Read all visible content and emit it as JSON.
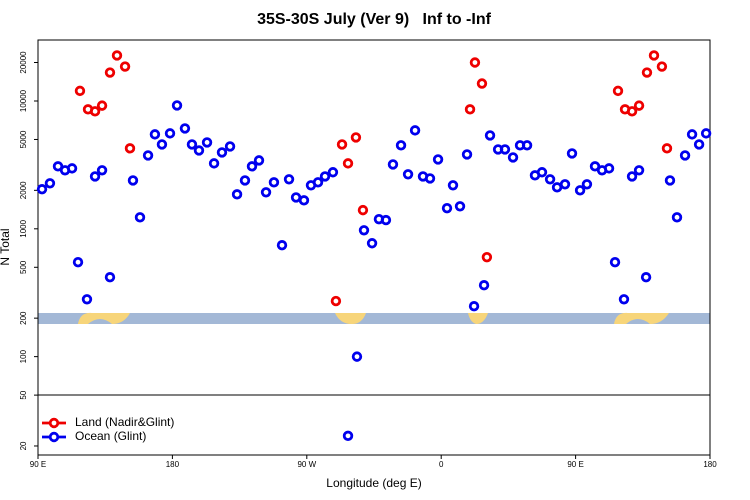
{
  "chart_data": {
    "type": "scatter",
    "title": "35S-30S July (Ver 9)   Inf to -Inf",
    "xlabel": "Longitude (deg E)",
    "ylabel": "N Total",
    "xlim": [
      90,
      540
    ],
    "xticks": [
      {
        "value": 90,
        "label": "90 E"
      },
      180,
      {
        "value": 270,
        "label": "90 W"
      },
      {
        "value": 360,
        "label": "0"
      },
      {
        "value": 450,
        "label": "90 E"
      },
      {
        "value": 540,
        "label": "180"
      }
    ],
    "ylim": [
      17,
      30000
    ],
    "log_y": true,
    "yticks": [
      20,
      50,
      100,
      200,
      500,
      1000,
      2000,
      5000,
      10000,
      20000
    ],
    "legend": "bottomleft",
    "series": [
      {
        "name": "Land (Nadir&Glint)",
        "color": "#ee0000",
        "x": [
          118.1,
          123.5,
          128.2,
          132.9,
          138.2,
          142.9,
          148.3,
          151.6,
          289.5,
          293.6,
          297.6,
          302.9,
          307.6,
          379.3,
          382.6,
          387.3,
          390.6,
          478.4,
          483.1,
          487.8,
          492.5,
          497.8,
          502.5,
          507.8,
          511.2
        ],
        "values": [
          12000,
          8600,
          8300,
          9200,
          16700,
          22700,
          18600,
          4260,
          272,
          4570,
          3250,
          5190,
          1400,
          8600,
          20000,
          13700,
          600,
          12000,
          8600,
          8300,
          9200,
          16700,
          22700,
          18600,
          4260
        ]
      },
      {
        "name": "Ocean (Glint)",
        "color": "#0000ee",
        "x": [
          92.7,
          98.0,
          103.4,
          108.1,
          112.8,
          116.8,
          122.8,
          128.2,
          132.9,
          138.2,
          153.6,
          158.3,
          163.7,
          168.3,
          173.0,
          178.4,
          183.1,
          188.4,
          193.1,
          197.8,
          203.2,
          207.9,
          213.2,
          218.6,
          223.3,
          228.6,
          233.3,
          238.0,
          242.7,
          248.0,
          253.4,
          258.1,
          262.8,
          268.1,
          272.8,
          277.5,
          282.2,
          287.5,
          303.6,
          297.6,
          308.3,
          313.7,
          318.3,
          323.0,
          327.7,
          333.1,
          337.8,
          342.5,
          347.8,
          352.5,
          357.9,
          363.9,
          367.9,
          372.6,
          377.3,
          382.0,
          388.7,
          392.7,
          398.1,
          402.7,
          408.1,
          412.8,
          417.5,
          422.8,
          427.5,
          432.9,
          437.6,
          442.9,
          447.6,
          453.0,
          457.6,
          463.0,
          467.7,
          472.4,
          476.4,
          482.4,
          487.8,
          492.5,
          497.2,
          513.2,
          517.9,
          523.3,
          528.0,
          532.7,
          537.4
        ],
        "values": [
          2040,
          2270,
          3080,
          2870,
          2970,
          548,
          281,
          2570,
          2870,
          418,
          2390,
          1230,
          3750,
          5480,
          4570,
          5580,
          9230,
          6100,
          4570,
          4100,
          4740,
          3250,
          3960,
          4410,
          1860,
          2390,
          3080,
          3430,
          1930,
          2310,
          744,
          2440,
          1760,
          1670,
          2190,
          2310,
          2570,
          2770,
          100,
          24,
          974,
          771,
          1190,
          1170,
          3190,
          4500,
          2670,
          5890,
          2570,
          2480,
          3490,
          1450,
          2190,
          1500,
          3820,
          248,
          362,
          5380,
          4180,
          4180,
          3620,
          4500,
          4500,
          2620,
          2770,
          2440,
          2110,
          2230,
          3890,
          2000,
          2230,
          3080,
          2870,
          2970,
          548,
          281,
          2570,
          2870,
          418,
          2390,
          1230,
          3750,
          5480,
          4570,
          5580
        ]
      }
    ]
  }
}
